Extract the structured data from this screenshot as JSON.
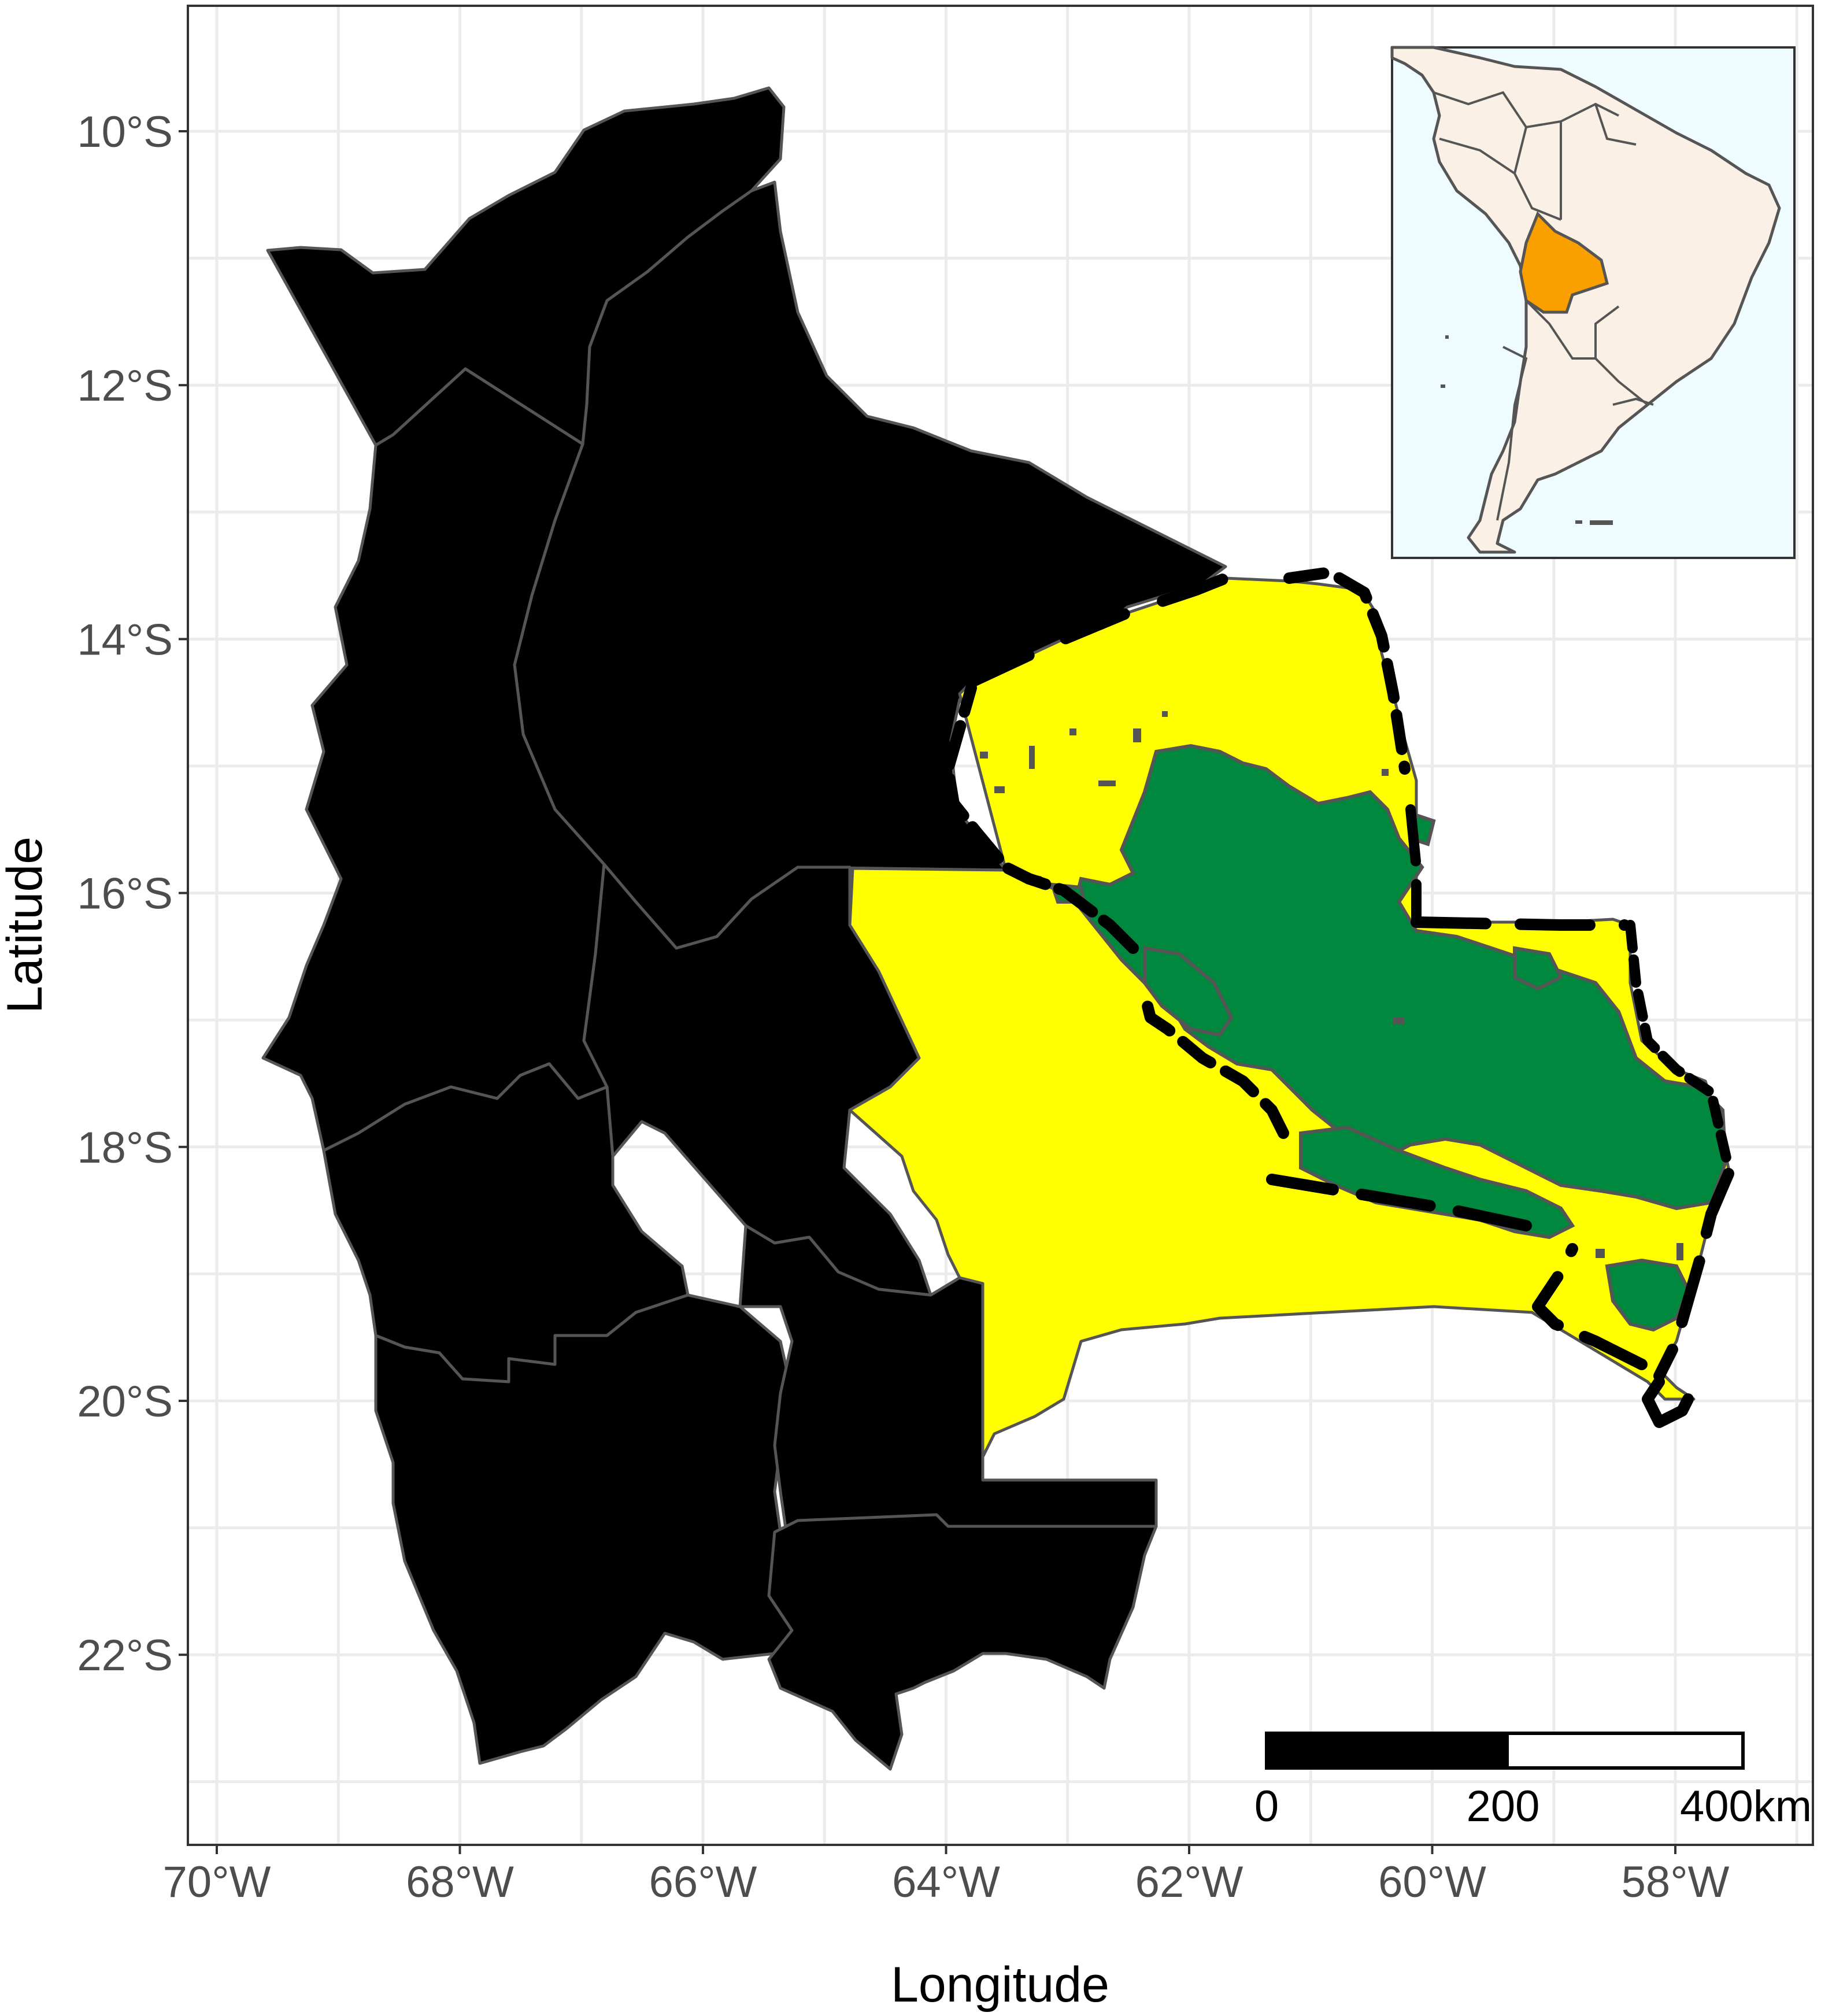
{
  "axes": {
    "x_title": "Longitude",
    "y_title": "Latitude",
    "x_ticks": [
      {
        "label": "70°W",
        "lon": -70
      },
      {
        "label": "68°W",
        "lon": -68
      },
      {
        "label": "66°W",
        "lon": -66
      },
      {
        "label": "64°W",
        "lon": -64
      },
      {
        "label": "62°W",
        "lon": -62
      },
      {
        "label": "60°W",
        "lon": -60
      },
      {
        "label": "58°W",
        "lon": -58
      }
    ],
    "y_ticks": [
      {
        "label": "10°S",
        "lat": -10
      },
      {
        "label": "12°S",
        "lat": -12
      },
      {
        "label": "14°S",
        "lat": -14
      },
      {
        "label": "16°S",
        "lat": -16
      },
      {
        "label": "18°S",
        "lat": -18
      },
      {
        "label": "20°S",
        "lat": -20
      },
      {
        "label": "22°S",
        "lat": -22
      }
    ]
  },
  "scale_bar": {
    "labels": [
      "0",
      "200",
      "400km"
    ]
  },
  "colors": {
    "departments": "#f9a000",
    "highlighted_department": "#ffff00",
    "forest_patches": "#00883f",
    "study_area_outline": "#000000",
    "boundary_lines": "#555555",
    "inset_ocean": "#eefcff",
    "inset_land": "#faf0e6",
    "inset_highlight": "#f9a000"
  },
  "inset": {
    "name": "South America locator",
    "highlighted_country": "Bolivia"
  },
  "chart_data": {
    "type": "map",
    "title": "",
    "xlabel": "Longitude",
    "ylabel": "Latitude",
    "xlim": [
      -70.3,
      -57.0
    ],
    "ylim": [
      -23.8,
      -9.0
    ],
    "grid": true,
    "layers": [
      {
        "name": "departments",
        "color": "orange"
      },
      {
        "name": "highlighted department",
        "color": "yellow"
      },
      {
        "name": "forest patches",
        "color": "green"
      },
      {
        "name": "study area",
        "style": "dashed black outline"
      }
    ]
  }
}
